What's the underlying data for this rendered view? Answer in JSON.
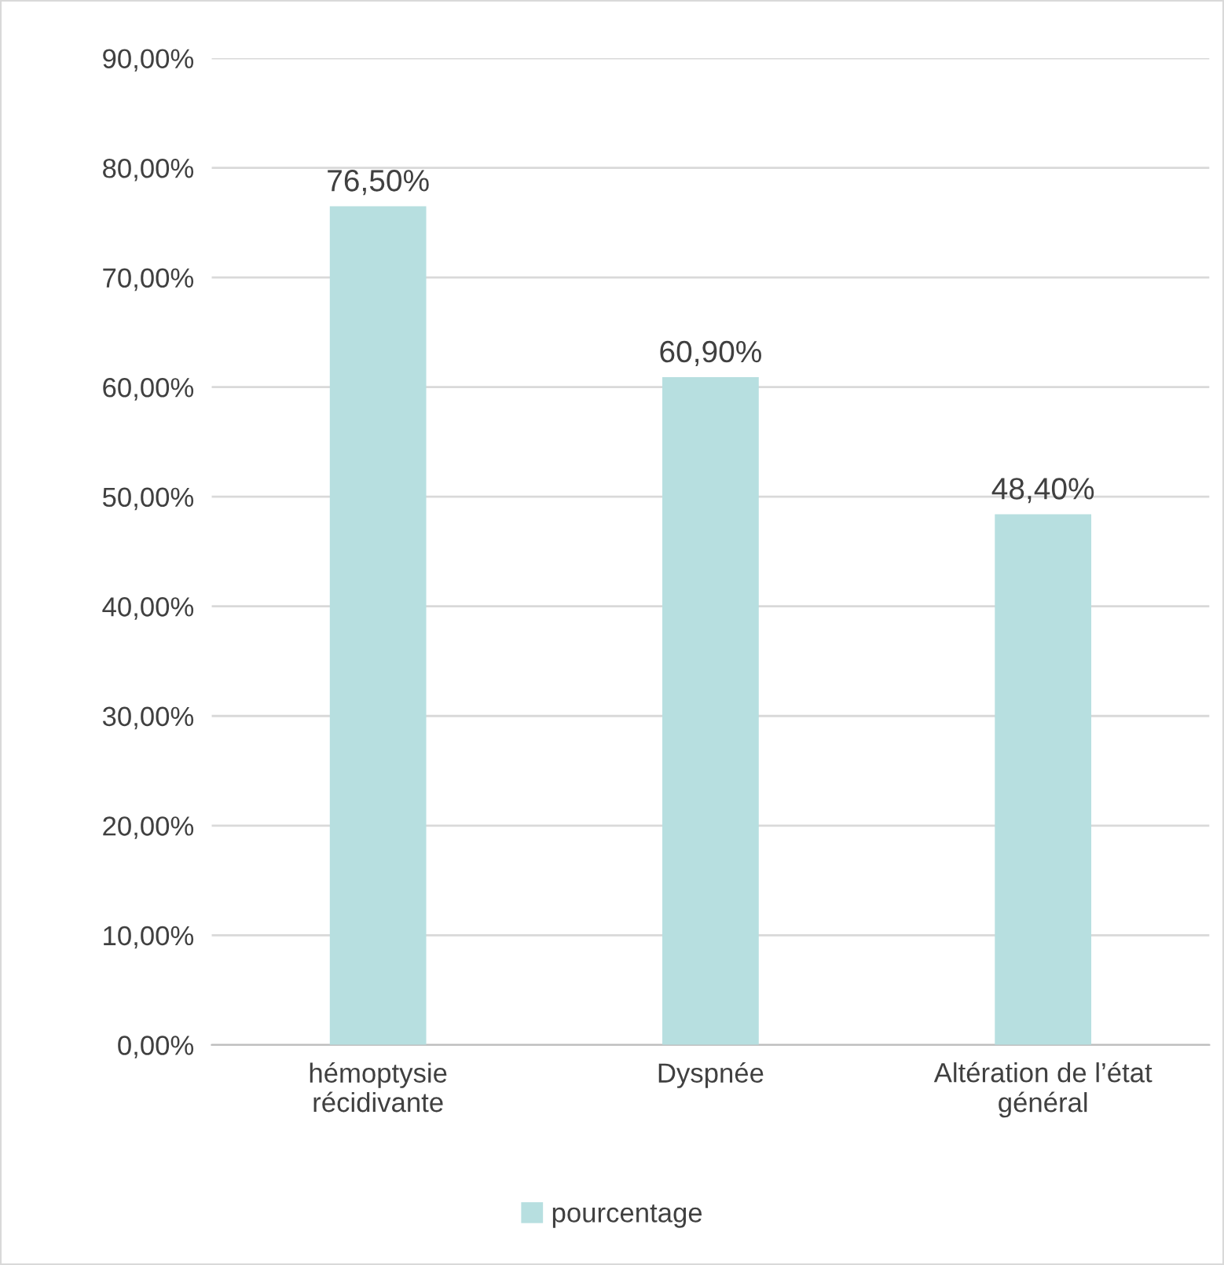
{
  "chart_data": {
    "type": "bar",
    "categories": [
      "hémoptysie\nrécidivante",
      "Dyspnée",
      "Altération de l’état\ngénéral"
    ],
    "series": [
      {
        "name": "pourcentage",
        "color": "#b7dfe0",
        "values": [
          76.5,
          60.9,
          48.4
        ],
        "value_labels": [
          "76,50%",
          "60,90%",
          "48,40%"
        ]
      }
    ],
    "ylim": [
      0,
      90
    ],
    "yticks": [
      {
        "value": 0,
        "label": "0,00%"
      },
      {
        "value": 10,
        "label": "10,00%"
      },
      {
        "value": 20,
        "label": "20,00%"
      },
      {
        "value": 30,
        "label": "30,00%"
      },
      {
        "value": 40,
        "label": "40,00%"
      },
      {
        "value": 50,
        "label": "50,00%"
      },
      {
        "value": 60,
        "label": "60,00%"
      },
      {
        "value": 70,
        "label": "70,00%"
      },
      {
        "value": 80,
        "label": "80,00%"
      },
      {
        "value": 90,
        "label": "90,00%"
      }
    ],
    "grid": "y",
    "legend": "bottom"
  }
}
